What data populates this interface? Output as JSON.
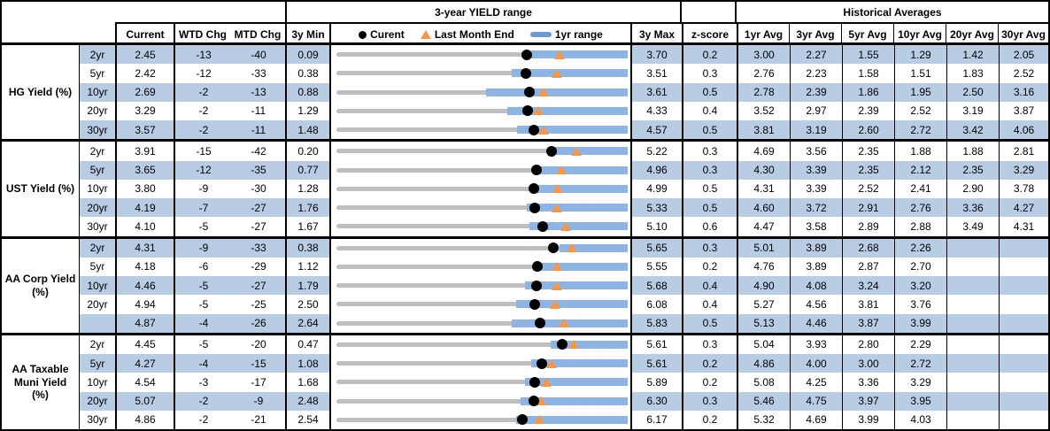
{
  "header": {
    "range_title": "3-year YIELD range",
    "historical_title": "Historical Averages",
    "current": "Current",
    "wtd": "WTD Chg",
    "mtd": "MTD Chg",
    "min": "3y Min",
    "max": "3y Max",
    "zscore": "z-score",
    "avg_cols": [
      "1yr Avg",
      "3yr Avg",
      "5yr Avg",
      "10yr Avg",
      "20yr Avg",
      "30yr Avg"
    ],
    "legend": {
      "current": "Curent",
      "last_month": "Last Month End",
      "range": "1yr range"
    }
  },
  "colors": {
    "stripe": "#b8cce4",
    "bar_blue": "#8db4e2",
    "track_gray": "#bfbfbf",
    "marker_orange": "#f79646",
    "legend_bar_blue": "#6d9ad1",
    "dot_black": "#000000",
    "border_black": "#000000"
  },
  "chart_data": {
    "type": "table",
    "title": "3-year YIELD range",
    "legend_entries": [
      "Curent",
      "Last Month End",
      "1yr range"
    ],
    "notes": "Each row embeds a bullet chart: gray track spans 3y Min to 3y Max, blue bar is 1yr range, black dot is current yield, orange triangle is last month end.",
    "groups": [
      {
        "label": "HG Yield (%)",
        "rows": [
          {
            "tenor": "2yr",
            "current": 2.45,
            "wtd": -13,
            "mtd": -40,
            "min3y": 0.09,
            "max3y": 3.7,
            "z": 0.2,
            "last_month_end": 2.85,
            "yr1_low": 2.5,
            "yr1_high": 3.7,
            "avgs": [
              "3.00",
              "2.27",
              "1.55",
              "1.29",
              "1.42",
              "2.05"
            ]
          },
          {
            "tenor": "5yr",
            "current": 2.42,
            "wtd": -12,
            "mtd": -33,
            "min3y": 0.38,
            "max3y": 3.51,
            "z": 0.3,
            "last_month_end": 2.75,
            "yr1_low": 2.26,
            "yr1_high": 3.51,
            "avgs": [
              "2.76",
              "2.23",
              "1.58",
              "1.51",
              "1.83",
              "2.52"
            ]
          },
          {
            "tenor": "10yr",
            "current": 2.69,
            "wtd": -2,
            "mtd": -13,
            "min3y": 0.88,
            "max3y": 3.61,
            "z": 0.5,
            "last_month_end": 2.82,
            "yr1_low": 2.28,
            "yr1_high": 3.61,
            "avgs": [
              "2.78",
              "2.39",
              "1.86",
              "1.95",
              "2.50",
              "3.16"
            ]
          },
          {
            "tenor": "20yr",
            "current": 3.29,
            "wtd": -2,
            "mtd": -11,
            "min3y": 1.29,
            "max3y": 4.33,
            "z": 0.4,
            "last_month_end": 3.4,
            "yr1_low": 3.07,
            "yr1_high": 4.33,
            "avgs": [
              "3.52",
              "2.97",
              "2.39",
              "2.52",
              "3.19",
              "3.87"
            ]
          },
          {
            "tenor": "30yr",
            "current": 3.57,
            "wtd": -2,
            "mtd": -11,
            "min3y": 1.48,
            "max3y": 4.57,
            "z": 0.5,
            "last_month_end": 3.68,
            "yr1_low": 3.4,
            "yr1_high": 4.57,
            "avgs": [
              "3.81",
              "3.19",
              "2.60",
              "2.72",
              "3.42",
              "4.06"
            ]
          }
        ]
      },
      {
        "label": "UST Yield (%)",
        "rows": [
          {
            "tenor": "2yr",
            "current": 3.91,
            "wtd": -15,
            "mtd": -42,
            "min3y": 0.2,
            "max3y": 5.22,
            "z": 0.3,
            "last_month_end": 4.33,
            "yr1_low": 3.87,
            "yr1_high": 5.22,
            "avgs": [
              "4.69",
              "3.56",
              "2.35",
              "1.88",
              "1.88",
              "2.81"
            ]
          },
          {
            "tenor": "5yr",
            "current": 3.65,
            "wtd": -12,
            "mtd": -35,
            "min3y": 0.77,
            "max3y": 4.96,
            "z": 0.3,
            "last_month_end": 4.0,
            "yr1_low": 3.61,
            "yr1_high": 4.96,
            "avgs": [
              "4.30",
              "3.39",
              "2.35",
              "2.12",
              "2.35",
              "3.29"
            ]
          },
          {
            "tenor": "10yr",
            "current": 3.8,
            "wtd": -9,
            "mtd": -30,
            "min3y": 1.28,
            "max3y": 4.99,
            "z": 0.5,
            "last_month_end": 4.1,
            "yr1_low": 3.76,
            "yr1_high": 4.99,
            "avgs": [
              "4.31",
              "3.39",
              "2.52",
              "2.41",
              "2.90",
              "3.78"
            ]
          },
          {
            "tenor": "20yr",
            "current": 4.19,
            "wtd": -7,
            "mtd": -27,
            "min3y": 1.76,
            "max3y": 5.33,
            "z": 0.5,
            "last_month_end": 4.46,
            "yr1_low": 4.09,
            "yr1_high": 5.33,
            "avgs": [
              "4.60",
              "3.72",
              "2.91",
              "2.76",
              "3.36",
              "4.27"
            ]
          },
          {
            "tenor": "30yr",
            "current": 4.1,
            "wtd": -5,
            "mtd": -27,
            "min3y": 1.67,
            "max3y": 5.1,
            "z": 0.6,
            "last_month_end": 4.37,
            "yr1_low": 3.94,
            "yr1_high": 5.1,
            "avgs": [
              "4.47",
              "3.58",
              "2.89",
              "2.88",
              "3.49",
              "4.31"
            ]
          }
        ]
      },
      {
        "label": "AA Corp Yield\n(%)",
        "rows": [
          {
            "tenor": "2yr",
            "current": 4.31,
            "wtd": -9,
            "mtd": -33,
            "min3y": 0.38,
            "max3y": 5.65,
            "z": 0.3,
            "last_month_end": 4.64,
            "yr1_low": 4.41,
            "yr1_high": 5.65,
            "avgs": [
              "5.01",
              "3.89",
              "2.68",
              "2.26",
              "",
              ""
            ]
          },
          {
            "tenor": "5yr",
            "current": 4.18,
            "wtd": -6,
            "mtd": -29,
            "min3y": 1.12,
            "max3y": 5.55,
            "z": 0.2,
            "last_month_end": 4.47,
            "yr1_low": 4.11,
            "yr1_high": 5.55,
            "avgs": [
              "4.76",
              "3.89",
              "2.87",
              "2.70",
              "",
              ""
            ]
          },
          {
            "tenor": "10yr",
            "current": 4.46,
            "wtd": -5,
            "mtd": -27,
            "min3y": 1.79,
            "max3y": 5.68,
            "z": 0.4,
            "last_month_end": 4.73,
            "yr1_low": 4.31,
            "yr1_high": 5.68,
            "avgs": [
              "4.90",
              "4.08",
              "3.24",
              "3.20",
              "",
              ""
            ]
          },
          {
            "tenor": "20yr",
            "current": 4.94,
            "wtd": -5,
            "mtd": -25,
            "min3y": 2.5,
            "max3y": 6.08,
            "z": 0.4,
            "last_month_end": 5.19,
            "yr1_low": 4.71,
            "yr1_high": 6.08,
            "avgs": [
              "5.27",
              "4.56",
              "3.81",
              "3.76",
              "",
              ""
            ]
          },
          {
            "tenor": "",
            "current": 4.87,
            "wtd": -4,
            "mtd": -26,
            "min3y": 2.64,
            "max3y": 5.83,
            "z": 0.5,
            "last_month_end": 5.13,
            "yr1_low": 4.56,
            "yr1_high": 5.83,
            "avgs": [
              "5.13",
              "4.46",
              "3.87",
              "3.99",
              "",
              ""
            ]
          }
        ]
      },
      {
        "label": "AA Taxable\nMuni Yield\n(%)",
        "rows": [
          {
            "tenor": "2yr",
            "current": 4.45,
            "wtd": -5,
            "mtd": -20,
            "min3y": 0.47,
            "max3y": 5.61,
            "z": 0.3,
            "last_month_end": 4.65,
            "yr1_low": 4.25,
            "yr1_high": 5.61,
            "avgs": [
              "5.04",
              "3.93",
              "2.80",
              "2.29",
              "",
              ""
            ]
          },
          {
            "tenor": "5yr",
            "current": 4.27,
            "wtd": -4,
            "mtd": -15,
            "min3y": 1.08,
            "max3y": 5.61,
            "z": 0.2,
            "last_month_end": 4.42,
            "yr1_low": 4.11,
            "yr1_high": 5.61,
            "avgs": [
              "4.86",
              "4.00",
              "3.00",
              "2.72",
              "",
              ""
            ]
          },
          {
            "tenor": "10yr",
            "current": 4.54,
            "wtd": -3,
            "mtd": -17,
            "min3y": 1.68,
            "max3y": 5.89,
            "z": 0.2,
            "last_month_end": 4.71,
            "yr1_low": 4.4,
            "yr1_high": 5.89,
            "avgs": [
              "5.08",
              "4.25",
              "3.36",
              "3.29",
              "",
              ""
            ]
          },
          {
            "tenor": "20yr",
            "current": 5.07,
            "wtd": -2,
            "mtd": -9,
            "min3y": 2.48,
            "max3y": 6.3,
            "z": 0.3,
            "last_month_end": 5.16,
            "yr1_low": 4.89,
            "yr1_high": 6.3,
            "avgs": [
              "5.46",
              "4.75",
              "3.97",
              "3.95",
              "",
              ""
            ]
          },
          {
            "tenor": "30yr",
            "current": 4.86,
            "wtd": -2,
            "mtd": -21,
            "min3y": 2.54,
            "max3y": 6.17,
            "z": 0.2,
            "last_month_end": 5.07,
            "yr1_low": 4.78,
            "yr1_high": 6.17,
            "avgs": [
              "5.32",
              "4.69",
              "3.99",
              "4.03",
              "",
              ""
            ]
          }
        ]
      }
    ]
  }
}
